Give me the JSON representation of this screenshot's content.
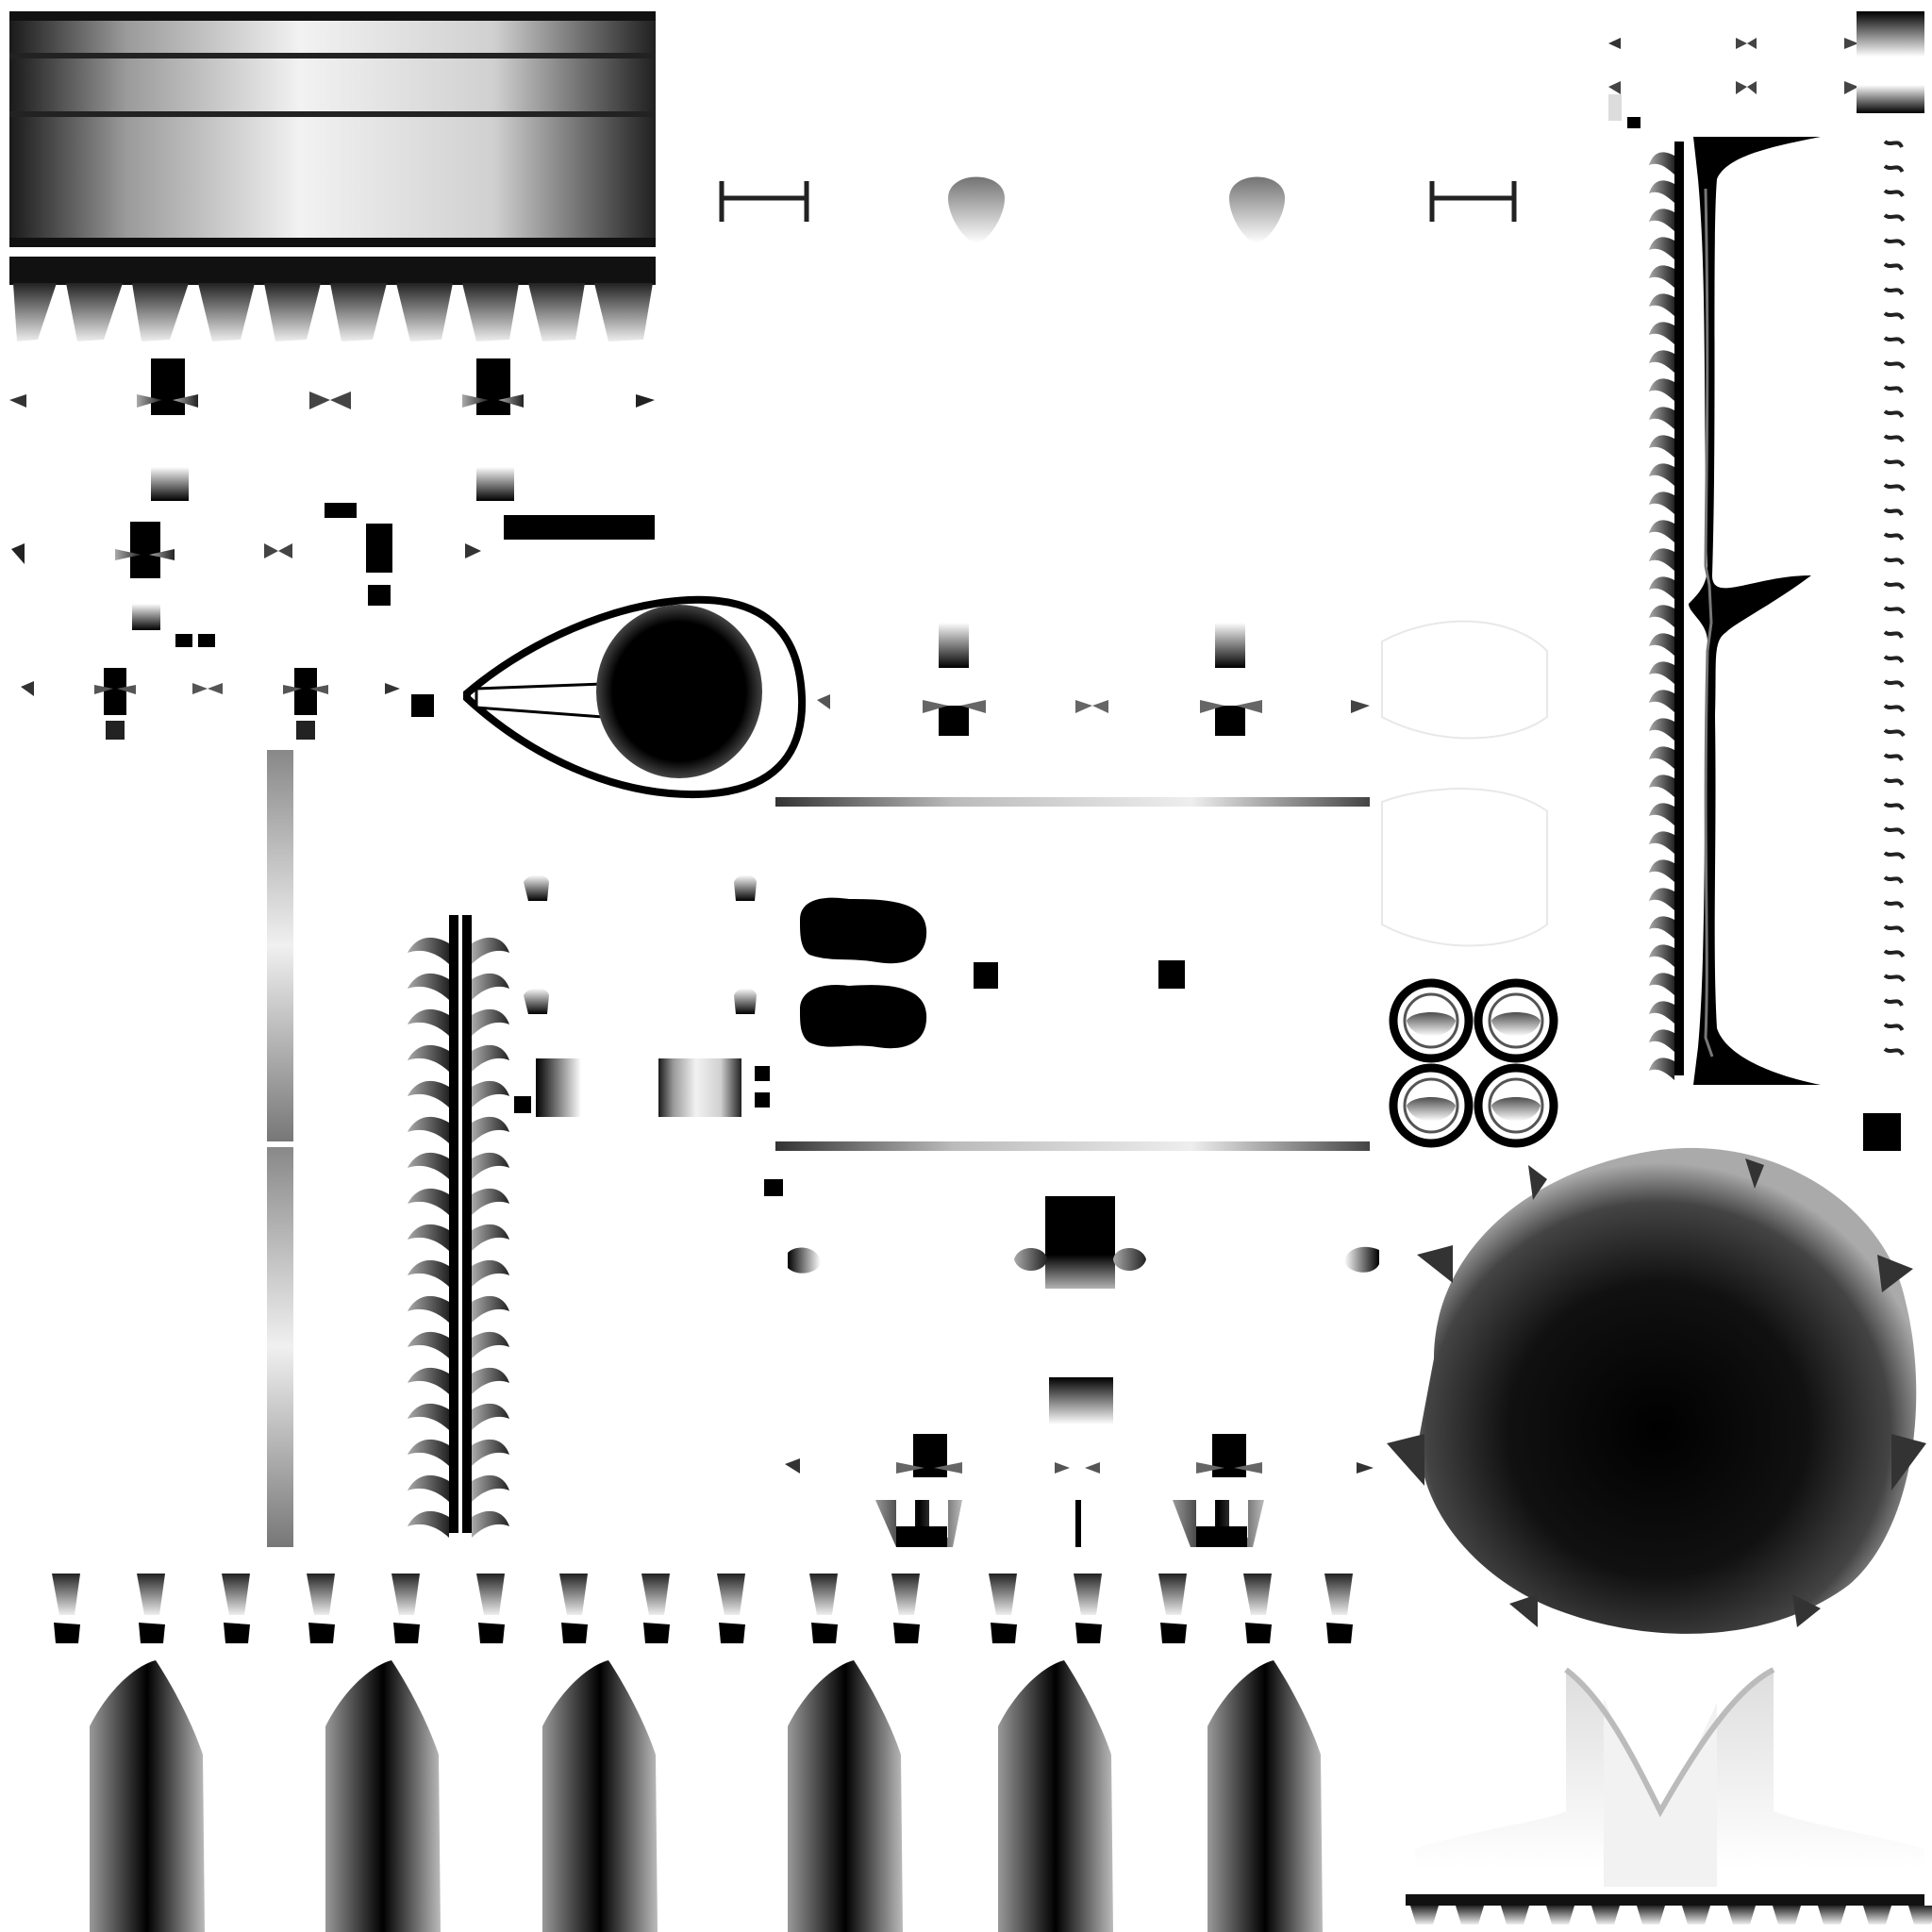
{
  "texture": {
    "background": "#ffffff",
    "ink": "#000000",
    "mid_gray": "#808080",
    "light_gray": "#e6e6e6"
  }
}
